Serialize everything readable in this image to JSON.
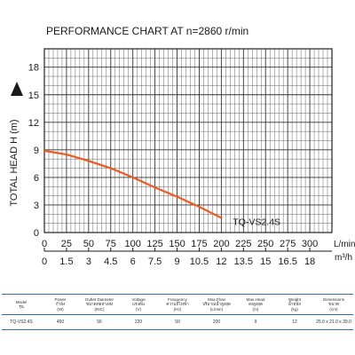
{
  "chart_data": {
    "type": "line",
    "title": "PERFORMANCE CHART AT  n=2860 r/min",
    "ylabel": "TOTAL HEAD  H (m)",
    "ylim": [
      0,
      20
    ],
    "yticks": [
      "0",
      "3",
      "6",
      "9",
      "12",
      "15",
      "18"
    ],
    "x_lmin": {
      "ticks": [
        "0",
        "25",
        "50",
        "75",
        "100",
        "125",
        "150",
        "175",
        "200",
        "225",
        "250",
        "275",
        "300"
      ],
      "unit": "L/min",
      "range": [
        0,
        325
      ]
    },
    "x_m3h": {
      "ticks": [
        "0",
        "1.5",
        "3",
        "4.5",
        "6",
        "7.5",
        "9",
        "10.5",
        "12",
        "13.5",
        "15",
        "16.5",
        "18"
      ],
      "unit": "m³/h"
    },
    "grid": true,
    "series": [
      {
        "name": "TQ-VS2.4S",
        "color": "#ee5a1e",
        "x": [
          0,
          25,
          50,
          75,
          100,
          125,
          150,
          175,
          200
        ],
        "y": [
          8.9,
          8.5,
          7.8,
          7.0,
          6.0,
          4.9,
          3.9,
          2.8,
          1.6
        ]
      }
    ]
  },
  "specs": {
    "headers": [
      [
        "Model",
        "รุ่น"
      ],
      [
        "Power",
        "กำลัง",
        "(W)"
      ],
      [
        "Outlet Diameter",
        "ขนาดท่อทางส่ง",
        "(INC)"
      ],
      [
        "Voltage",
        "แรงดัน",
        "(V)"
      ],
      [
        "Frequency",
        "ความถี่ไฟฟ้า",
        "(Hz)"
      ],
      [
        "Max.Flow",
        "ปริมาณน้ำสูงสุด",
        "(L/min)"
      ],
      [
        "Max.Head",
        "ส่งสูงสุด",
        "(m)"
      ],
      [
        "Weight",
        "น้ำหนัก",
        "(kg)"
      ],
      [
        "Dimensions",
        "ขนาด",
        "(cm)"
      ]
    ],
    "rows": [
      [
        "TQ-VS2.4S",
        "450",
        "56",
        "220",
        "50",
        "200",
        "9",
        "12",
        "25.0 x 21.0 x 39.0"
      ]
    ]
  }
}
